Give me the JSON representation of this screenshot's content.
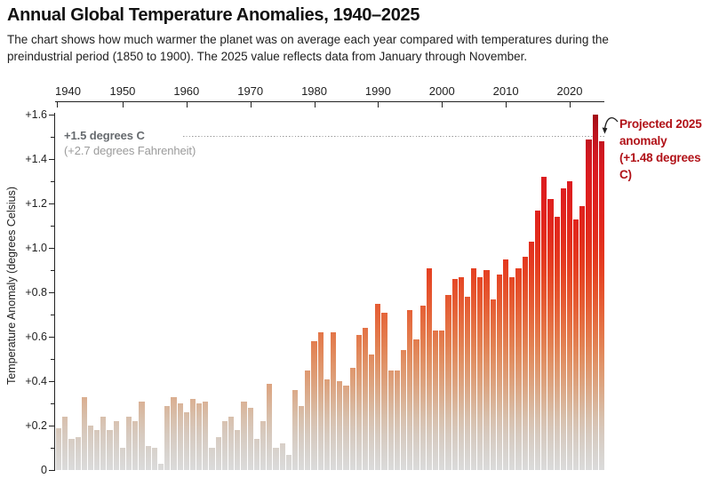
{
  "header": {
    "title": "Annual Global Temperature Anomalies, 1940–2025",
    "subtitle_line1": "The chart shows how much warmer the planet was on average each year compared with temperatures during the",
    "subtitle_line2": "preindustrial period (1850 to 1900). The 2025 value reflects data from January through November."
  },
  "chart_data": {
    "type": "bar",
    "title": "Annual Global Temperature Anomalies, 1940–2025",
    "xlabel": "",
    "ylabel": "Temperature Anomaly (degrees Celsius)",
    "ylim": [
      0,
      1.6
    ],
    "x_tick_labels": [
      "1940",
      "1950",
      "1960",
      "1970",
      "1980",
      "1990",
      "2000",
      "2010",
      "2020"
    ],
    "y_tick_labels": [
      "0",
      "+0.2",
      "+0.4",
      "+0.6",
      "+0.8",
      "+1.0",
      "+1.2",
      "+1.4",
      "+1.6"
    ],
    "grid": "off",
    "years": [
      1940,
      1941,
      1942,
      1943,
      1944,
      1945,
      1946,
      1947,
      1948,
      1949,
      1950,
      1951,
      1952,
      1953,
      1954,
      1955,
      1956,
      1957,
      1958,
      1959,
      1960,
      1961,
      1962,
      1963,
      1964,
      1965,
      1966,
      1967,
      1968,
      1969,
      1970,
      1971,
      1972,
      1973,
      1974,
      1975,
      1976,
      1977,
      1978,
      1979,
      1980,
      1981,
      1982,
      1983,
      1984,
      1985,
      1986,
      1987,
      1988,
      1989,
      1990,
      1991,
      1992,
      1993,
      1994,
      1995,
      1996,
      1997,
      1998,
      1999,
      2000,
      2001,
      2002,
      2003,
      2004,
      2005,
      2006,
      2007,
      2008,
      2009,
      2010,
      2011,
      2012,
      2013,
      2014,
      2015,
      2016,
      2017,
      2018,
      2019,
      2020,
      2021,
      2022,
      2023,
      2024,
      2025
    ],
    "values": [
      0.19,
      0.24,
      0.14,
      0.15,
      0.33,
      0.2,
      0.18,
      0.24,
      0.18,
      0.22,
      0.1,
      0.24,
      0.22,
      0.31,
      0.11,
      0.1,
      0.03,
      0.29,
      0.33,
      0.3,
      0.26,
      0.32,
      0.3,
      0.31,
      0.1,
      0.15,
      0.22,
      0.24,
      0.18,
      0.31,
      0.28,
      0.14,
      0.22,
      0.39,
      0.1,
      0.12,
      0.07,
      0.36,
      0.29,
      0.45,
      0.58,
      0.62,
      0.41,
      0.62,
      0.4,
      0.38,
      0.46,
      0.61,
      0.64,
      0.52,
      0.75,
      0.71,
      0.45,
      0.45,
      0.54,
      0.72,
      0.59,
      0.74,
      0.91,
      0.63,
      0.63,
      0.79,
      0.86,
      0.87,
      0.78,
      0.91,
      0.87,
      0.9,
      0.77,
      0.88,
      0.95,
      0.87,
      0.91,
      0.96,
      1.03,
      1.17,
      1.32,
      1.22,
      1.14,
      1.27,
      1.3,
      1.13,
      1.19,
      1.49,
      1.61,
      1.48
    ],
    "reference_line": {
      "value": 1.5,
      "label_bold": "+1.5 degrees C",
      "label_light": "(+2.7 degrees Fahrenheit)"
    },
    "annotation": {
      "line1": "Projected 2025",
      "line2": "anomaly",
      "line3": "(+1.48 degrees C)",
      "color": "#b11218"
    },
    "colors": {
      "axis": "#222222",
      "dotted_line": "#9a9a9a",
      "ref_label_bold": "#666a6e",
      "ref_label_light": "#9b9b9b",
      "gradient_stops": [
        {
          "pos": 0,
          "color": "#dbdbdb"
        },
        {
          "pos": 5,
          "color": "#d8d3ce"
        },
        {
          "pos": 10,
          "color": "#d7cabf"
        },
        {
          "pos": 15,
          "color": "#d8bfab"
        },
        {
          "pos": 20,
          "color": "#dab093"
        },
        {
          "pos": 25,
          "color": "#dda17c"
        },
        {
          "pos": 30,
          "color": "#e09267"
        },
        {
          "pos": 35,
          "color": "#e28254"
        },
        {
          "pos": 40,
          "color": "#e47245"
        },
        {
          "pos": 45,
          "color": "#e56238"
        },
        {
          "pos": 50,
          "color": "#e5532d"
        },
        {
          "pos": 55,
          "color": "#e54424"
        },
        {
          "pos": 60,
          "color": "#e4371f"
        },
        {
          "pos": 65,
          "color": "#e22d1d"
        },
        {
          "pos": 70,
          "color": "#e1261d"
        },
        {
          "pos": 75,
          "color": "#df211e"
        },
        {
          "pos": 80,
          "color": "#dd1d1f"
        },
        {
          "pos": 85,
          "color": "#d81a20"
        },
        {
          "pos": 90,
          "color": "#cd1720"
        },
        {
          "pos": 95,
          "color": "#bb131e"
        },
        {
          "pos": 100,
          "color": "#a30e16"
        }
      ]
    }
  }
}
